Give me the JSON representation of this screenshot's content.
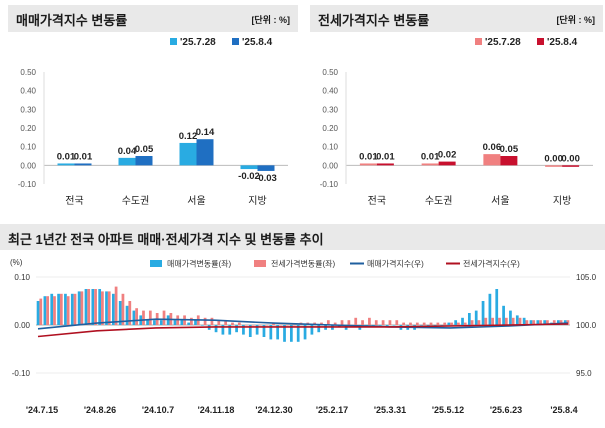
{
  "charts": {
    "sale": {
      "title": "매매가격지수 변동률",
      "unit": "[단위 : %]",
      "legend": [
        "'25.7.28",
        "'25.8.4"
      ],
      "colors": [
        "#29abe2",
        "#1f6fc2"
      ]
    },
    "jeonse": {
      "title": "전세가격지수 변동률",
      "unit": "[단위 : %]",
      "legend": [
        "'25.7.28",
        "'25.8.4"
      ],
      "colors": [
        "#f08080",
        "#c8102e"
      ]
    },
    "trend": {
      "title": "최근 1년간 전국 아파트 매매·전세가격 지수 및 변동률 추이",
      "unit_left": "(%)",
      "legend": [
        "매매가격변동률(좌)",
        "전세가격변동률(좌)",
        "매매가격지수(우)",
        "전세가격지수(우)"
      ],
      "colors": [
        "#29abe2",
        "#f08080",
        "#1f5f9f",
        "#b01020"
      ]
    }
  },
  "chart_data": [
    {
      "type": "bar",
      "title": "매매가격지수 변동률",
      "categories": [
        "전국",
        "수도권",
        "서울",
        "지방"
      ],
      "series": [
        {
          "name": "'25.7.28",
          "values": [
            0.01,
            0.04,
            0.12,
            -0.02
          ]
        },
        {
          "name": "'25.8.4",
          "values": [
            0.01,
            0.05,
            0.14,
            -0.03
          ]
        }
      ],
      "ylim": [
        -0.1,
        0.5
      ],
      "yticks": [
        "0.50",
        "0.40",
        "0.30",
        "0.20",
        "0.10",
        "0.00",
        "-0.10"
      ]
    },
    {
      "type": "bar",
      "title": "전세가격지수 변동률",
      "categories": [
        "전국",
        "수도권",
        "서울",
        "지방"
      ],
      "series": [
        {
          "name": "'25.7.28",
          "values": [
            0.01,
            0.01,
            0.06,
            0.0
          ]
        },
        {
          "name": "'25.8.4",
          "values": [
            0.01,
            0.02,
            0.05,
            0.0
          ]
        }
      ],
      "ylim": [
        -0.1,
        0.5
      ],
      "yticks": [
        "0.50",
        "0.40",
        "0.30",
        "0.20",
        "0.10",
        "0.00",
        "-0.10"
      ]
    },
    {
      "type": "bar",
      "title": "최근 1년간 전국 아파트 매매·전세가격 지수 및 변동률 추이",
      "x_labels": [
        "'24.7.15",
        "'24.8.26",
        "'24.10.7",
        "'24.11.18",
        "'24.12.30",
        "'25.2.17",
        "'25.3.31",
        "'25.5.12",
        "'25.6.23",
        "'25.8.4"
      ],
      "ylim_left": [
        -0.1,
        0.1
      ],
      "yticks_left": [
        "0.10",
        "0.00",
        "-0.10"
      ],
      "ylim_right": [
        95.0,
        105.0
      ],
      "yticks_right": [
        "105.0",
        "100.0",
        "95.0"
      ],
      "series": [
        {
          "name": "매매가격변동률(좌)",
          "type": "bar",
          "values": [
            0.05,
            0.06,
            0.065,
            0.065,
            0.065,
            0.065,
            0.07,
            0.075,
            0.075,
            0.075,
            0.07,
            0.065,
            0.05,
            0.04,
            0.03,
            0.02,
            0.01,
            0.01,
            0.01,
            0.02,
            0.01,
            0.01,
            0.005,
            0.01,
            0.0,
            -0.01,
            -0.015,
            -0.02,
            -0.02,
            -0.015,
            -0.02,
            -0.025,
            -0.02,
            -0.025,
            -0.03,
            -0.03,
            -0.035,
            -0.035,
            -0.035,
            -0.03,
            -0.02,
            -0.015,
            -0.01,
            -0.01,
            -0.005,
            -0.01,
            0.0,
            -0.01,
            0.0,
            0.0,
            0.0,
            -0.005,
            0.0,
            -0.01,
            -0.01,
            -0.01,
            0.0,
            -0.005,
            0.0,
            0.0,
            0.005,
            0.01,
            0.015,
            0.025,
            0.03,
            0.05,
            0.065,
            0.075,
            0.04,
            0.03,
            0.02,
            0.015,
            0.01,
            0.01,
            0.01,
            0.005,
            0.01,
            0.01
          ]
        },
        {
          "name": "전세가격변동률(좌)",
          "type": "bar",
          "values": [
            0.055,
            0.06,
            0.06,
            0.065,
            0.06,
            0.065,
            0.07,
            0.075,
            0.075,
            0.07,
            0.07,
            0.08,
            0.065,
            0.05,
            0.035,
            0.03,
            0.03,
            0.025,
            0.03,
            0.025,
            0.02,
            0.02,
            0.015,
            0.02,
            0.015,
            0.015,
            0.01,
            0.01,
            0.005,
            0.005,
            0.0,
            0.0,
            0.0,
            0.0,
            0.005,
            0.0,
            0.0,
            0.0,
            0.005,
            0.005,
            0.005,
            0.005,
            0.01,
            0.005,
            0.01,
            0.01,
            0.015,
            0.01,
            0.015,
            0.01,
            0.01,
            0.01,
            0.01,
            0.005,
            0.005,
            0.005,
            0.005,
            0.005,
            0.005,
            0.005,
            0.005,
            0.005,
            0.005,
            0.01,
            0.01,
            0.015,
            0.015,
            0.015,
            0.015,
            0.015,
            0.015,
            0.01,
            0.01,
            0.01,
            0.01,
            0.01,
            0.01,
            0.01
          ]
        },
        {
          "name": "매매가격지수(우)",
          "type": "line",
          "values": [
            99.6,
            100.2,
            100.6,
            100.5,
            100.2,
            100.0,
            99.8,
            99.7,
            99.9,
            100.2
          ]
        },
        {
          "name": "전세가격지수(우)",
          "type": "line",
          "values": [
            98.8,
            99.4,
            99.7,
            99.8,
            99.8,
            99.8,
            99.8,
            99.9,
            100.0,
            100.1
          ]
        }
      ]
    }
  ]
}
